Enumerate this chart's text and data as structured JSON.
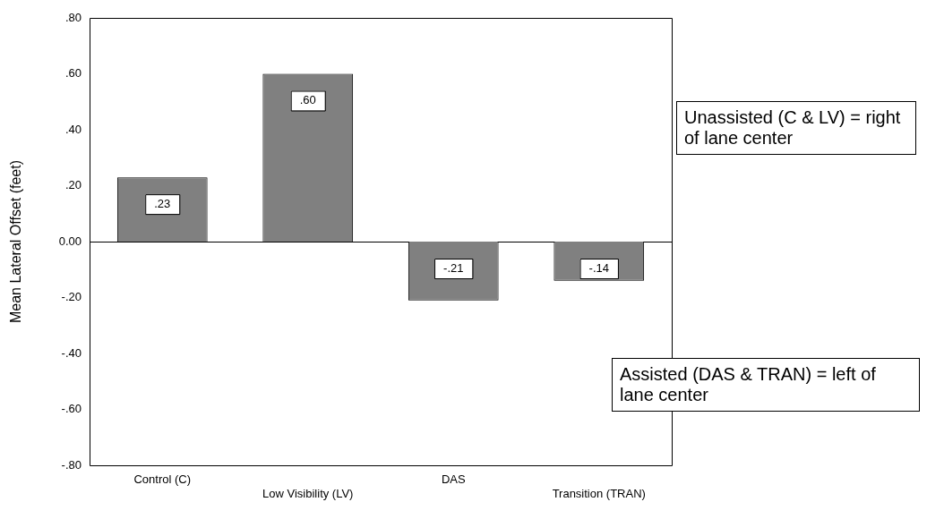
{
  "chart_data": {
    "type": "bar",
    "ylabel": "Mean Lateral Offset (feet)",
    "categories": [
      "Control (C)",
      "Low Visibility (LV)",
      "DAS",
      "Transition (TRAN)"
    ],
    "values": [
      0.23,
      0.6,
      -0.21,
      -0.14
    ],
    "color": "#808080",
    "value_labels": [
      ".23",
      ".60",
      "-.21",
      "-.14"
    ],
    "ylim": [
      -0.8,
      0.8
    ],
    "yticks": [
      {
        "value": 0.8,
        "label": ".80"
      },
      {
        "value": 0.6,
        "label": ".60"
      },
      {
        "value": 0.4,
        "label": ".40"
      },
      {
        "value": 0.2,
        "label": ".20"
      },
      {
        "value": 0,
        "label": "0.00"
      },
      {
        "value": -0.2,
        "label": "-.20"
      },
      {
        "value": -0.4,
        "label": "-.40"
      },
      {
        "value": -0.6,
        "label": "-.60"
      },
      {
        "value": -0.8,
        "label": "-.80"
      }
    ],
    "ref_lines": [
      {
        "axis": "y",
        "value": 0,
        "color": "#000000"
      }
    ],
    "annotations": [
      "Unassisted (C & LV) = right of lane center",
      "Assisted (DAS & TRAN) = left of lane center"
    ],
    "grid": false,
    "legend": false
  }
}
